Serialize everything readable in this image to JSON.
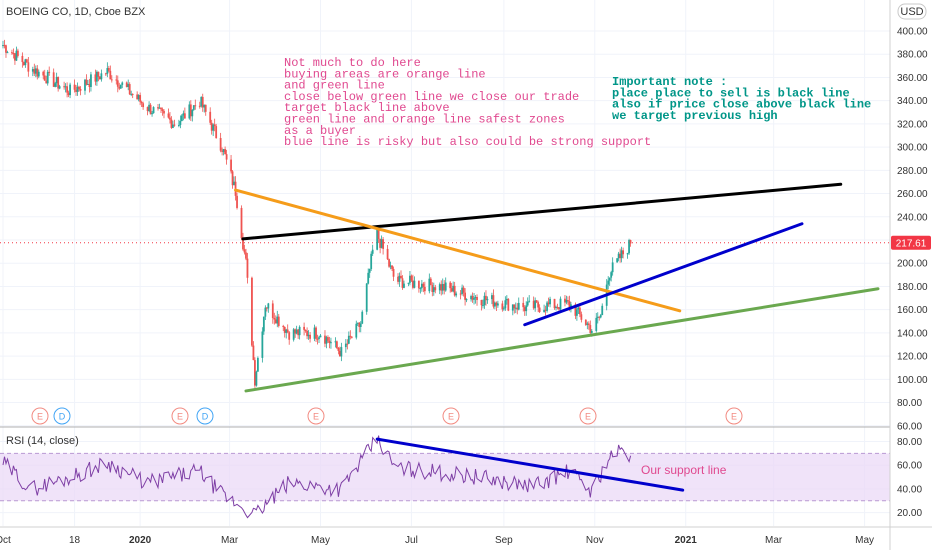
{
  "header": {
    "symbol_line": "BOEING CO, 1D, Cboe BZX",
    "currency": "USD",
    "last_price": "217.61"
  },
  "colors": {
    "up": "#26a69a",
    "down": "#ef5350",
    "orange_line": "#f59c1a",
    "green_line": "#6aa84f",
    "black_line": "#000000",
    "blue_line": "#0000cc",
    "rsi_line": "#7e3fa5",
    "rsi_band": "#e9d7f7",
    "note_pink": "#e0488f",
    "note_teal": "#009688",
    "price_badge": "#f23645",
    "event_red": "#f28b82",
    "event_blue": "#42a5f5"
  },
  "annotations": {
    "pink_note": [
      "Not much to do here",
      "buying areas are orange line",
      "and green line",
      "close below green line we close our trade",
      "target black line above",
      "green line and orange line safest zones",
      "as a buyer",
      "blue line is risky but also could be strong support"
    ],
    "teal_note": [
      "Important note :",
      "place place to sell is black line",
      "also if price close above black line",
      "we target previous high"
    ],
    "rsi_note": "Our support line"
  },
  "price_axis": {
    "ticks": [
      "400.00",
      "380.00",
      "360.00",
      "340.00",
      "320.00",
      "300.00",
      "280.00",
      "260.00",
      "240.00",
      "220.00",
      "200.00",
      "180.00",
      "160.00",
      "140.00",
      "120.00",
      "100.00",
      "80.00",
      "60.00"
    ]
  },
  "rsi_panel": {
    "title": "RSI (14, close)",
    "ticks": [
      "80.00",
      "60.00",
      "40.00",
      "20.00"
    ]
  },
  "time_axis": {
    "labels": [
      "Oct",
      "18",
      "2020",
      "Mar",
      "May",
      "Jul",
      "Sep",
      "Nov",
      "2021",
      "Mar",
      "May"
    ]
  },
  "events": [
    "E",
    "D",
    "E",
    "D",
    "E",
    "E",
    "E",
    "E"
  ],
  "chart_data": {
    "type": "candlestick",
    "title": "BOEING CO, 1D, Cboe BZX",
    "ylim": [
      60,
      410
    ],
    "rsi_ylim": [
      5,
      90
    ],
    "x_range": [
      "2019-10-01",
      "2021-05-10"
    ],
    "price_anchors": [
      {
        "date": "2019-10-01",
        "price": 388
      },
      {
        "date": "2019-10-20",
        "price": 368
      },
      {
        "date": "2019-11-15",
        "price": 348
      },
      {
        "date": "2019-12-10",
        "price": 365
      },
      {
        "date": "2020-01-05",
        "price": 335
      },
      {
        "date": "2020-01-25",
        "price": 320
      },
      {
        "date": "2020-02-10",
        "price": 340
      },
      {
        "date": "2020-02-25",
        "price": 300
      },
      {
        "date": "2020-03-05",
        "price": 262
      },
      {
        "date": "2020-03-12",
        "price": 200
      },
      {
        "date": "2020-03-18",
        "price": 100
      },
      {
        "date": "2020-03-25",
        "price": 165
      },
      {
        "date": "2020-04-10",
        "price": 140
      },
      {
        "date": "2020-05-01",
        "price": 140
      },
      {
        "date": "2020-05-15",
        "price": 123
      },
      {
        "date": "2020-05-28",
        "price": 148
      },
      {
        "date": "2020-06-05",
        "price": 210
      },
      {
        "date": "2020-06-08",
        "price": 225
      },
      {
        "date": "2020-06-20",
        "price": 185
      },
      {
        "date": "2020-07-20",
        "price": 180
      },
      {
        "date": "2020-08-15",
        "price": 170
      },
      {
        "date": "2020-09-15",
        "price": 162
      },
      {
        "date": "2020-10-15",
        "price": 165
      },
      {
        "date": "2020-10-30",
        "price": 143
      },
      {
        "date": "2020-11-05",
        "price": 155
      },
      {
        "date": "2020-11-10",
        "price": 190
      },
      {
        "date": "2020-11-18",
        "price": 205
      },
      {
        "date": "2020-11-25",
        "price": 217
      }
    ],
    "rsi_anchors": [
      {
        "date": "2019-10-01",
        "value": 62
      },
      {
        "date": "2019-10-20",
        "value": 40
      },
      {
        "date": "2019-11-15",
        "value": 50
      },
      {
        "date": "2019-12-10",
        "value": 62
      },
      {
        "date": "2020-01-05",
        "value": 45
      },
      {
        "date": "2020-02-10",
        "value": 55
      },
      {
        "date": "2020-02-25",
        "value": 35
      },
      {
        "date": "2020-03-18",
        "value": 18
      },
      {
        "date": "2020-04-10",
        "value": 45
      },
      {
        "date": "2020-05-15",
        "value": 40
      },
      {
        "date": "2020-06-08",
        "value": 82
      },
      {
        "date": "2020-06-20",
        "value": 58
      },
      {
        "date": "2020-08-15",
        "value": 50
      },
      {
        "date": "2020-09-20",
        "value": 42
      },
      {
        "date": "2020-10-15",
        "value": 55
      },
      {
        "date": "2020-10-30",
        "value": 38
      },
      {
        "date": "2020-11-10",
        "value": 65
      },
      {
        "date": "2020-11-18",
        "value": 72
      },
      {
        "date": "2020-11-25",
        "value": 68
      }
    ],
    "trendlines": [
      {
        "name": "black line",
        "color": "black",
        "from": {
          "date": "2020-03-10",
          "price": 221
        },
        "to": {
          "date": "2021-04-15",
          "price": 268
        }
      },
      {
        "name": "orange line",
        "color": "orange",
        "from": {
          "date": "2020-03-05",
          "price": 263
        },
        "to": {
          "date": "2020-12-28",
          "price": 159
        }
      },
      {
        "name": "green line",
        "color": "green",
        "from": {
          "date": "2020-03-12",
          "price": 90
        },
        "to": {
          "date": "2021-05-10",
          "price": 178
        }
      },
      {
        "name": "blue line",
        "color": "blue",
        "from": {
          "date": "2020-09-15",
          "price": 147
        },
        "to": {
          "date": "2021-03-20",
          "price": 234
        }
      }
    ],
    "rsi_trendline": {
      "from": {
        "date": "2020-06-08",
        "value": 82
      },
      "to": {
        "date": "2020-12-30",
        "value": 39
      }
    },
    "rsi_band": [
      30,
      70
    ],
    "current_price_line": 217.61
  }
}
